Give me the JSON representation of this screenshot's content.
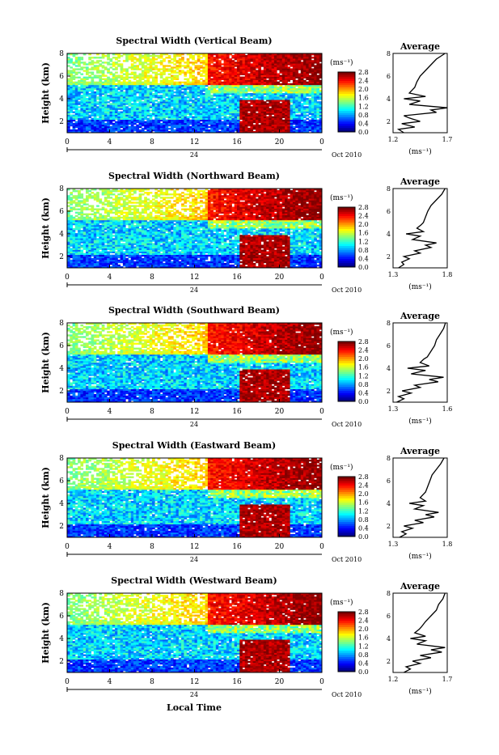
{
  "x_axis_label": "Local Time",
  "colorbar_unit": "(ms⁻¹)",
  "date_label": "Oct 2010",
  "date_day": "24",
  "avg_title": "Average",
  "x_ticks": [
    "0",
    "4",
    "8",
    "12",
    "16",
    "20",
    "0"
  ],
  "y_ticks": [
    "2",
    "4",
    "6",
    "8"
  ],
  "cbar_ticks": [
    "0.0",
    "0.4",
    "0.8",
    "1.2",
    "1.6",
    "2.0",
    "2.4",
    "2.8"
  ],
  "chart_data": [
    {
      "type": "heatmap",
      "title": "Spectral Width (Vertical Beam)",
      "ylabel": "Height (km)",
      "xlim_hours": [
        0,
        24
      ],
      "ylim_km": [
        1,
        8
      ],
      "colorbar_range": [
        0.0,
        2.8
      ],
      "avg_profile": {
        "xlim": [
          1.2,
          1.7
        ],
        "xtick_labels": [
          "1.2",
          "1.7"
        ],
        "ylim_km": [
          1,
          8
        ],
        "height_km": [
          1.0,
          1.3,
          1.5,
          1.8,
          2.0,
          2.3,
          2.5,
          2.8,
          3.0,
          3.2,
          3.5,
          3.8,
          4.0,
          4.2,
          4.5,
          4.8,
          5.0,
          5.5,
          6.0,
          6.5,
          7.0,
          7.5,
          8.0
        ],
        "value": [
          1.3,
          1.25,
          1.4,
          1.28,
          1.45,
          1.35,
          1.3,
          1.6,
          1.55,
          1.7,
          1.35,
          1.45,
          1.3,
          1.5,
          1.35,
          1.38,
          1.4,
          1.42,
          1.45,
          1.5,
          1.55,
          1.6,
          1.68
        ]
      }
    },
    {
      "type": "heatmap",
      "title": "Spectral Width (Northward Beam)",
      "ylabel": "Height (km)",
      "xlim_hours": [
        0,
        24
      ],
      "ylim_km": [
        1,
        8
      ],
      "colorbar_range": [
        0.0,
        2.8
      ],
      "avg_profile": {
        "xlim": [
          1.3,
          1.8
        ],
        "xtick_labels": [
          "1.3",
          "1.8"
        ],
        "ylim_km": [
          1,
          8
        ],
        "height_km": [
          1.0,
          1.3,
          1.5,
          1.8,
          2.0,
          2.3,
          2.5,
          2.8,
          3.0,
          3.2,
          3.5,
          3.8,
          4.0,
          4.2,
          4.5,
          4.8,
          5.0,
          5.5,
          6.0,
          6.5,
          7.0,
          7.5,
          8.0
        ],
        "value": [
          1.35,
          1.4,
          1.38,
          1.45,
          1.4,
          1.55,
          1.5,
          1.65,
          1.6,
          1.7,
          1.48,
          1.55,
          1.42,
          1.58,
          1.52,
          1.56,
          1.58,
          1.6,
          1.62,
          1.65,
          1.7,
          1.75,
          1.78
        ]
      }
    },
    {
      "type": "heatmap",
      "title": "Spectral Width (Southward Beam)",
      "ylabel": "Height (km)",
      "xlim_hours": [
        0,
        24
      ],
      "ylim_km": [
        1,
        8
      ],
      "colorbar_range": [
        0.0,
        2.8
      ],
      "avg_profile": {
        "xlim": [
          1.3,
          1.6
        ],
        "xtick_labels": [
          "1.3",
          "1.6"
        ],
        "ylim_km": [
          1,
          8
        ],
        "height_km": [
          1.0,
          1.3,
          1.5,
          1.8,
          2.0,
          2.3,
          2.5,
          2.8,
          3.0,
          3.2,
          3.5,
          3.8,
          4.0,
          4.2,
          4.5,
          4.8,
          5.0,
          5.5,
          6.0,
          6.5,
          7.0,
          7.5,
          8.0
        ],
        "value": [
          1.32,
          1.36,
          1.33,
          1.4,
          1.35,
          1.45,
          1.42,
          1.55,
          1.5,
          1.58,
          1.4,
          1.48,
          1.38,
          1.5,
          1.45,
          1.47,
          1.49,
          1.51,
          1.53,
          1.54,
          1.56,
          1.58,
          1.59
        ]
      }
    },
    {
      "type": "heatmap",
      "title": "Spectral Width (Eastward Beam)",
      "ylabel": "Height (km)",
      "xlim_hours": [
        0,
        24
      ],
      "ylim_km": [
        1,
        8
      ],
      "colorbar_range": [
        0.0,
        2.8
      ],
      "avg_profile": {
        "xlim": [
          1.3,
          1.8
        ],
        "xtick_labels": [
          "1.3",
          "1.8"
        ],
        "ylim_km": [
          1,
          8
        ],
        "height_km": [
          1.0,
          1.3,
          1.5,
          1.8,
          2.0,
          2.3,
          2.5,
          2.8,
          3.0,
          3.2,
          3.5,
          3.8,
          4.0,
          4.2,
          4.5,
          4.8,
          5.0,
          5.5,
          6.0,
          6.5,
          7.0,
          7.5,
          8.0
        ],
        "value": [
          1.36,
          1.42,
          1.38,
          1.48,
          1.4,
          1.58,
          1.5,
          1.68,
          1.6,
          1.72,
          1.5,
          1.58,
          1.45,
          1.6,
          1.55,
          1.58,
          1.6,
          1.62,
          1.64,
          1.66,
          1.7,
          1.74,
          1.77
        ]
      }
    },
    {
      "type": "heatmap",
      "title": "Spectral Width (Westward Beam)",
      "ylabel": "Height (km)",
      "xlim_hours": [
        0,
        24
      ],
      "ylim_km": [
        1,
        8
      ],
      "colorbar_range": [
        0.0,
        2.8
      ],
      "avg_profile": {
        "xlim": [
          1.2,
          1.7
        ],
        "xtick_labels": [
          "1.2",
          "1.7"
        ],
        "ylim_km": [
          1,
          8
        ],
        "height_km": [
          1.0,
          1.3,
          1.5,
          1.8,
          2.0,
          2.3,
          2.5,
          2.8,
          3.0,
          3.2,
          3.5,
          3.8,
          4.0,
          4.2,
          4.5,
          4.8,
          5.0,
          5.5,
          6.0,
          6.5,
          7.0,
          7.5,
          8.0
        ],
        "value": [
          1.3,
          1.36,
          1.32,
          1.45,
          1.38,
          1.55,
          1.45,
          1.65,
          1.55,
          1.68,
          1.42,
          1.5,
          1.36,
          1.5,
          1.4,
          1.44,
          1.46,
          1.5,
          1.55,
          1.6,
          1.62,
          1.66,
          1.68
        ]
      }
    }
  ]
}
